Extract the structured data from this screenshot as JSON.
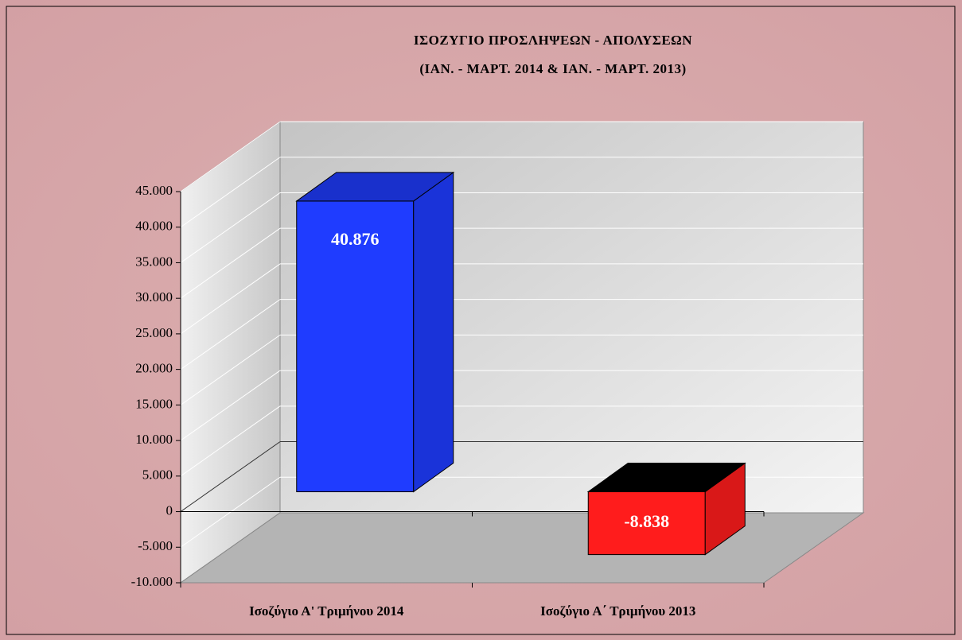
{
  "chart_data": {
    "type": "bar3d",
    "title": "ΙΣΟΖΥΓΙΟ ΠΡΟΣΛΗΨΕΩΝ - ΑΠΟΛΥΣΕΩΝ",
    "subtitle": "(ΙΑΝ. - ΜΑΡΤ. 2014 & ΙΑΝ. - ΜΑΡΤ. 2013)",
    "categories": [
      "Ισοζύγιο Α' Τριμήνου 2014",
      "Ισοζύγιο Α΄ Τριμήνου 2013"
    ],
    "values": [
      40876,
      -8838
    ],
    "value_labels": [
      "40.876",
      "-8.838"
    ],
    "colors": [
      "#1f3cff",
      "#ff1c1c"
    ],
    "ylim": [
      -10000,
      45000
    ],
    "yticks": [
      {
        "value": -10000,
        "label": "-10.000"
      },
      {
        "value": -5000,
        "label": "-5.000"
      },
      0,
      {
        "value": 5000,
        "label": "5.000"
      },
      {
        "value": 10000,
        "label": "10.000"
      },
      {
        "value": 15000,
        "label": "15.000"
      },
      {
        "value": 20000,
        "label": "20.000"
      },
      {
        "value": 25000,
        "label": "25.000"
      },
      {
        "value": 30000,
        "label": "30.000"
      },
      {
        "value": 35000,
        "label": "35.000"
      },
      {
        "value": 40000,
        "label": "40.000"
      },
      {
        "value": 45000,
        "label": "45.000"
      }
    ],
    "grid": true
  }
}
